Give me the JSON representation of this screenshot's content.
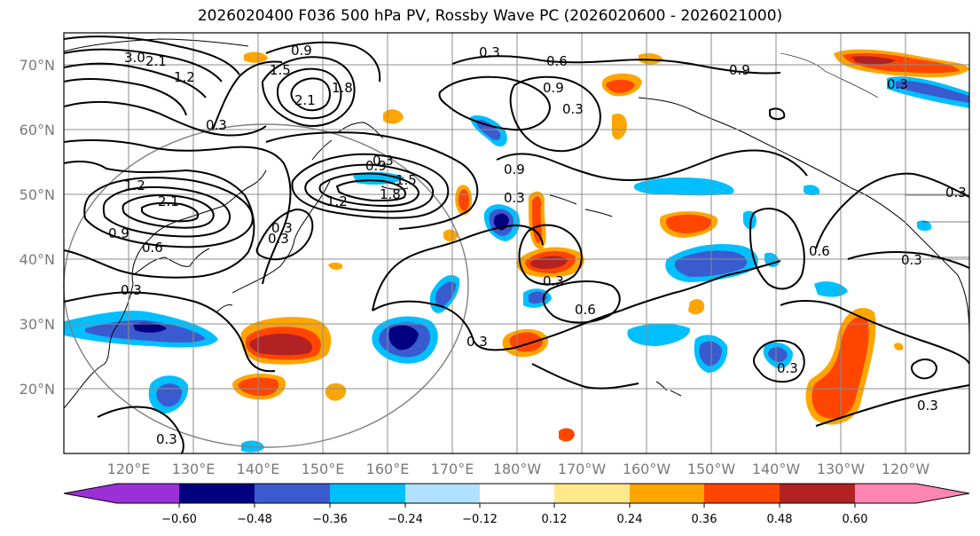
{
  "title": "2026020400 F036 500 hPa PV, Rossby Wave PC (2026020600 - 2026021000)",
  "latitude_labels": [
    "70°N",
    "60°N",
    "50°N",
    "40°N",
    "30°N",
    "20°N"
  ],
  "longitude_labels": [
    "120°E",
    "130°E",
    "140°E",
    "150°E",
    "160°E",
    "170°E",
    "180°W",
    "170°W",
    "160°W",
    "150°W",
    "140°W",
    "130°W",
    "120°W"
  ],
  "contour_labels": [
    "3.0",
    "2.1",
    "1.2",
    "1.5",
    "0.9",
    "2.1",
    "1.8",
    "0.3",
    "2.1",
    "1.2",
    "0.9",
    "0.6",
    "0.3",
    "0.3",
    "0.9",
    "1.8",
    "1.5",
    "1.2",
    "0.3",
    "0.3",
    "0.6",
    "0.9",
    "0.3",
    "0.9",
    "0.9",
    "0.3",
    "0.3",
    "0.3",
    "0.6",
    "0.3",
    "0.3",
    "0.6",
    "0.3",
    "0.3",
    "0.3",
    "0.3",
    "0.3"
  ],
  "colorbar": {
    "tick_labels": [
      "−0.60",
      "−0.48",
      "−0.36",
      "−0.24",
      "−0.12",
      "0.12",
      "0.24",
      "0.36",
      "0.48",
      "0.60"
    ],
    "colors": [
      "#9b30d9",
      "#000080",
      "#3a5bd0",
      "#00bfff",
      "#b0e2ff",
      "#ffffff",
      "#ffe98a",
      "#ffa500",
      "#ff4500",
      "#b22222",
      "#ff85b3"
    ]
  },
  "fill_colors": {
    "pos_light": "#ffe98a",
    "pos_med": "#ffa500",
    "pos_strong": "#ff4500",
    "pos_max": "#b22222",
    "neg_light": "#b0e2ff",
    "neg_med": "#00bfff",
    "neg_strong": "#3a5bd0",
    "neg_max": "#000080"
  }
}
